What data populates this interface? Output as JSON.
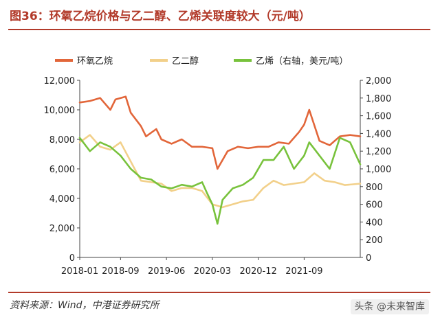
{
  "title": "图36：环氧乙烷价格与乙二醇、乙烯关联度较大（元/吨）",
  "source": "资料来源：Wind，中港证券研究所",
  "watermark": "头条 @未来智库",
  "colors": {
    "accent": "#b23a2a",
    "eo": "#e2663a",
    "meg": "#f2d08a",
    "eth": "#78c23c"
  },
  "chart_data": {
    "type": "line",
    "x_tick_labels": [
      "2018-01",
      "2018-09",
      "2019-06",
      "2020-03",
      "2020-12",
      "2021-09"
    ],
    "x_range": [
      "2018-01",
      "2022-08"
    ],
    "y_left": {
      "range": [
        0,
        12000
      ],
      "ticks": [
        0,
        2000,
        4000,
        6000,
        8000,
        10000,
        12000
      ],
      "tick_labels": [
        "0",
        "2,000",
        "4,000",
        "6,000",
        "8,000",
        "10,000",
        "12,000"
      ]
    },
    "y_right": {
      "range": [
        0,
        2000
      ],
      "ticks": [
        0,
        200,
        400,
        600,
        800,
        1000,
        1200,
        1400,
        1600,
        1800,
        2000
      ],
      "tick_labels": [
        "0",
        "200",
        "400",
        "600",
        "800",
        "1,000",
        "1,200",
        "1,400",
        "1,600",
        "1,800",
        "2,000"
      ]
    },
    "legend_position": "top",
    "grid": false,
    "series": [
      {
        "name": "环氧乙烷",
        "axis": "left",
        "color": "#e2663a",
        "x": [
          "2018-01",
          "2018-03",
          "2018-05",
          "2018-07",
          "2018-08",
          "2018-10",
          "2018-11",
          "2019-01",
          "2019-02",
          "2019-04",
          "2019-05",
          "2019-07",
          "2019-09",
          "2019-11",
          "2020-01",
          "2020-03",
          "2020-04",
          "2020-06",
          "2020-08",
          "2020-10",
          "2020-12",
          "2021-02",
          "2021-04",
          "2021-06",
          "2021-08",
          "2021-09",
          "2021-10",
          "2021-12",
          "2022-02",
          "2022-04",
          "2022-06",
          "2022-08"
        ],
        "values": [
          10500,
          10600,
          10800,
          10000,
          10700,
          10900,
          9800,
          8900,
          8200,
          8700,
          8000,
          7700,
          8000,
          7500,
          7500,
          7400,
          6000,
          7200,
          7500,
          7400,
          7500,
          7500,
          7800,
          7700,
          8500,
          9000,
          10000,
          7900,
          7600,
          8200,
          8300,
          8200
        ]
      },
      {
        "name": "乙二醇",
        "axis": "left",
        "color": "#f2d08a",
        "x": [
          "2018-01",
          "2018-03",
          "2018-05",
          "2018-07",
          "2018-09",
          "2018-11",
          "2019-01",
          "2019-03",
          "2019-05",
          "2019-07",
          "2019-09",
          "2019-11",
          "2020-01",
          "2020-03",
          "2020-05",
          "2020-07",
          "2020-09",
          "2020-11",
          "2021-01",
          "2021-03",
          "2021-05",
          "2021-07",
          "2021-09",
          "2021-11",
          "2022-01",
          "2022-03",
          "2022-05",
          "2022-08"
        ],
        "values": [
          7800,
          8300,
          7500,
          7300,
          7800,
          6500,
          5200,
          5100,
          5000,
          4500,
          4700,
          4700,
          4500,
          3600,
          3400,
          3600,
          3800,
          3900,
          4700,
          5200,
          4900,
          5000,
          5100,
          5700,
          5200,
          5100,
          4900,
          5000
        ]
      },
      {
        "name": "乙烯（右轴，美元/吨）",
        "axis": "right",
        "color": "#78c23c",
        "x": [
          "2018-01",
          "2018-03",
          "2018-05",
          "2018-07",
          "2018-09",
          "2018-11",
          "2019-01",
          "2019-03",
          "2019-05",
          "2019-07",
          "2019-09",
          "2019-11",
          "2020-01",
          "2020-02",
          "2020-03",
          "2020-04",
          "2020-05",
          "2020-07",
          "2020-09",
          "2020-11",
          "2021-01",
          "2021-03",
          "2021-05",
          "2021-07",
          "2021-09",
          "2021-10",
          "2021-12",
          "2022-02",
          "2022-04",
          "2022-06",
          "2022-08"
        ],
        "values": [
          1350,
          1200,
          1300,
          1250,
          1150,
          1000,
          900,
          880,
          800,
          780,
          820,
          800,
          850,
          720,
          600,
          380,
          650,
          780,
          820,
          900,
          1100,
          1100,
          1250,
          1000,
          1150,
          1300,
          1150,
          1000,
          1350,
          1300,
          1050
        ]
      }
    ]
  }
}
